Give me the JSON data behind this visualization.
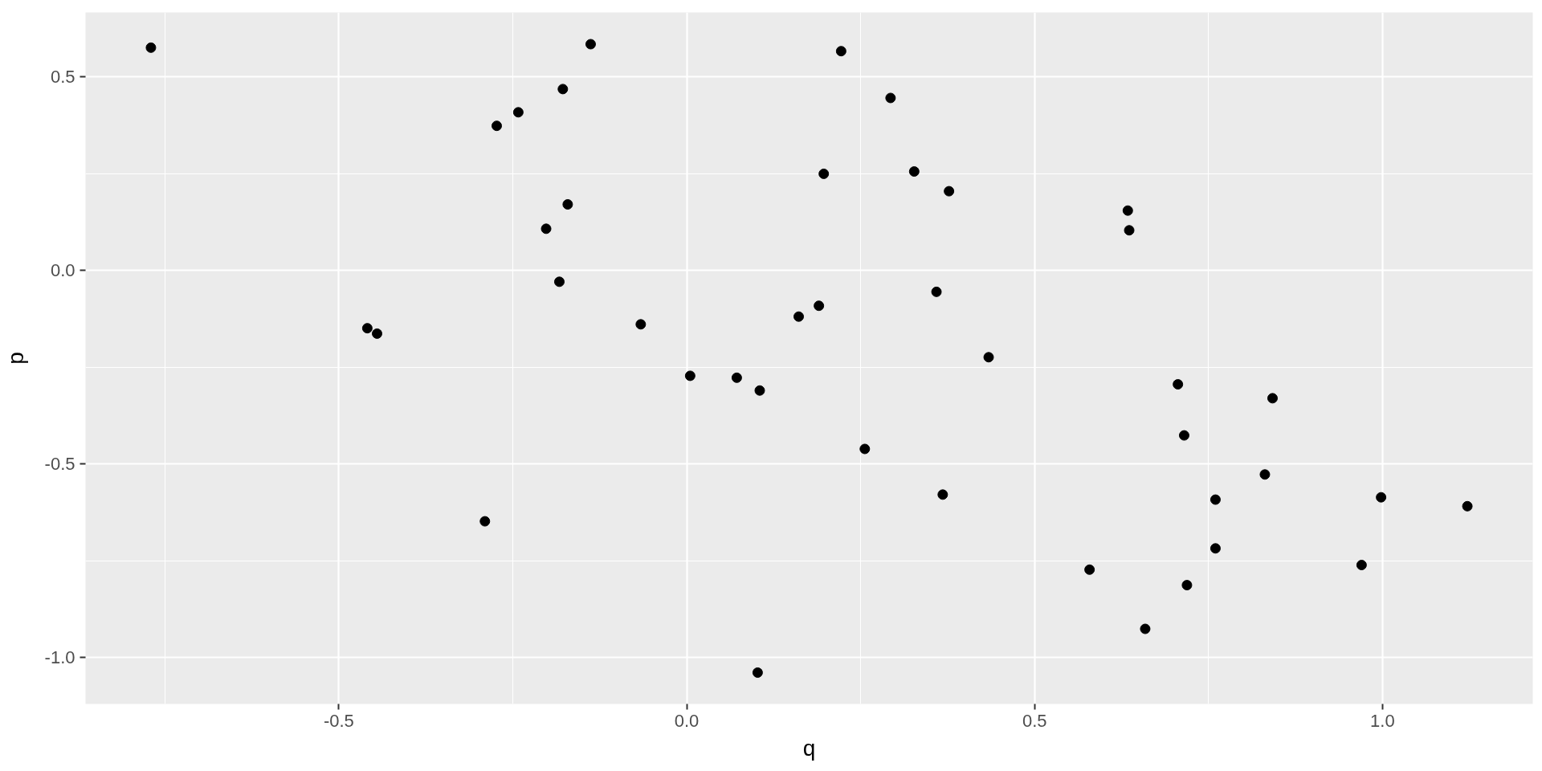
{
  "chart_data": {
    "type": "scatter",
    "xlabel": "q",
    "ylabel": "p",
    "marker": "circle",
    "grid": true,
    "xlim": [
      -0.864,
      1.216
    ],
    "ylim": [
      -1.12,
      0.667
    ],
    "xticks": [
      -0.5,
      {
        "value": 0,
        "label": "0.0"
      },
      0.5,
      {
        "value": 1,
        "label": "1.0"
      }
    ],
    "yticks": [
      {
        "value": -1,
        "label": "-1.0"
      },
      -0.5,
      {
        "value": 0,
        "label": "0.0"
      },
      0.5
    ],
    "x": [
      -0.77,
      -0.459,
      -0.445,
      -0.29,
      -0.273,
      -0.242,
      -0.202,
      -0.183,
      -0.178,
      -0.171,
      -0.138,
      -0.066,
      0.005,
      0.072,
      0.102,
      0.105,
      0.161,
      0.19,
      0.197,
      0.222,
      0.256,
      0.293,
      0.327,
      0.359,
      0.368,
      0.377,
      0.434,
      0.579,
      0.634,
      0.636,
      0.659,
      0.706,
      0.715,
      0.719,
      0.76,
      0.76,
      0.831,
      0.842,
      0.97,
      0.998,
      1.122
    ],
    "series": [
      {
        "color": "#000000",
        "values": [
          0.576,
          -0.149,
          -0.163,
          -0.648,
          0.374,
          0.409,
          0.108,
          -0.029,
          0.469,
          0.171,
          0.585,
          -0.139,
          -0.272,
          -0.277,
          -1.039,
          -0.31,
          -0.119,
          -0.091,
          0.25,
          0.567,
          -0.461,
          0.446,
          0.256,
          -0.055,
          -0.579,
          0.205,
          -0.224,
          -0.773,
          0.155,
          0.104,
          -0.926,
          -0.294,
          -0.426,
          -0.813,
          -0.592,
          -0.718,
          -0.527,
          -0.33,
          -0.761,
          -0.586,
          -0.609
        ]
      }
    ]
  }
}
